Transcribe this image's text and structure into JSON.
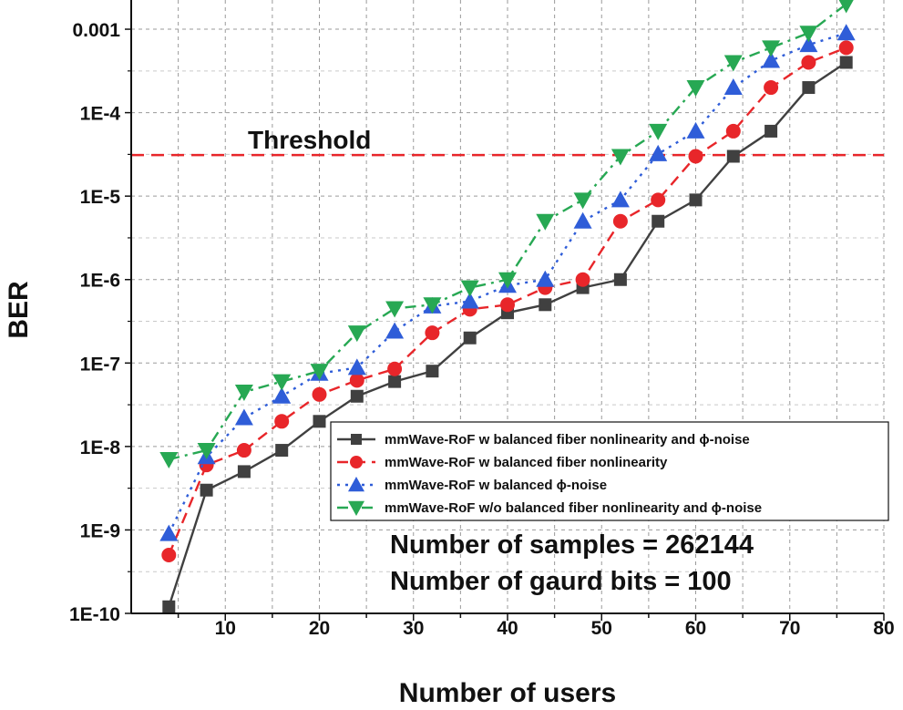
{
  "chart_data": {
    "type": "line",
    "title": "",
    "xlabel": "Number of users",
    "ylabel": "BER",
    "yscale": "log",
    "xlim": [
      0,
      80
    ],
    "ylim_exp": [
      -10,
      -2.65
    ],
    "xticks": [
      10,
      20,
      30,
      40,
      50,
      60,
      70,
      80
    ],
    "xtick_labels": [
      "10",
      "20",
      "30",
      "40",
      "50",
      "60",
      "70",
      "80"
    ],
    "yticks_exp": [
      -10,
      -9,
      -8,
      -7,
      -6,
      -5,
      -4,
      -3
    ],
    "ytick_labels": [
      "1E-10",
      "1E-9",
      "1E-8",
      "1E-7",
      "1E-6",
      "1E-5",
      "1E-4",
      "0.001"
    ],
    "grid": true,
    "legend_position": "center-right",
    "threshold": {
      "label": "Threshold",
      "value": 3.1e-05,
      "color": "#e8262a"
    },
    "annotations": [
      "Number of samples = 262144",
      "Number of gaurd bits = 100"
    ],
    "x": [
      4,
      8,
      12,
      16,
      20,
      24,
      28,
      32,
      36,
      40,
      44,
      48,
      52,
      56,
      60,
      64,
      68,
      72,
      76
    ],
    "series": [
      {
        "name": "mmWave-RoF w balanced fiber nonlinearity and ϕ-noise",
        "color": "#404040",
        "marker": "square",
        "dash": "solid",
        "values": [
          1.2e-10,
          3e-09,
          5e-09,
          9e-09,
          2e-08,
          4e-08,
          6e-08,
          8e-08,
          2e-07,
          4e-07,
          5e-07,
          8e-07,
          1e-06,
          5e-06,
          9e-06,
          3e-05,
          6e-05,
          0.0002,
          0.0004
        ]
      },
      {
        "name": "mmWave-RoF w balanced fiber nonlinearity",
        "color": "#e8262a",
        "marker": "circle",
        "dash": "dashed",
        "values": [
          5e-10,
          6e-09,
          9e-09,
          2e-08,
          4.2e-08,
          6.2e-08,
          8.5e-08,
          2.3e-07,
          4.4e-07,
          5e-07,
          8e-07,
          1e-06,
          5e-06,
          9e-06,
          3e-05,
          6e-05,
          0.0002,
          0.0004,
          0.0006
        ]
      },
      {
        "name": "mmWave-RoF w balanced  ϕ-noise",
        "color": "#2f5dd8",
        "marker": "triangle-up",
        "dash": "dotted",
        "values": [
          9e-10,
          7.5e-09,
          2.2e-08,
          4e-08,
          7.5e-08,
          8.8e-08,
          2.4e-07,
          4.8e-07,
          5.5e-07,
          8.5e-07,
          1e-06,
          5e-06,
          9e-06,
          3.2e-05,
          6e-05,
          0.0002,
          0.00042,
          0.00065,
          0.0009
        ]
      },
      {
        "name": "mmWave-RoF w/o balanced fiber nonlinearity and ϕ-noise",
        "color": "#27a853",
        "marker": "triangle-down",
        "dash": "dashdot",
        "values": [
          7e-09,
          9e-09,
          4.5e-08,
          6e-08,
          8e-08,
          2.3e-07,
          4.5e-07,
          5e-07,
          8e-07,
          1e-06,
          5e-06,
          9e-06,
          3e-05,
          6e-05,
          0.0002,
          0.0004,
          0.0006,
          0.0009,
          0.002
        ]
      }
    ]
  }
}
